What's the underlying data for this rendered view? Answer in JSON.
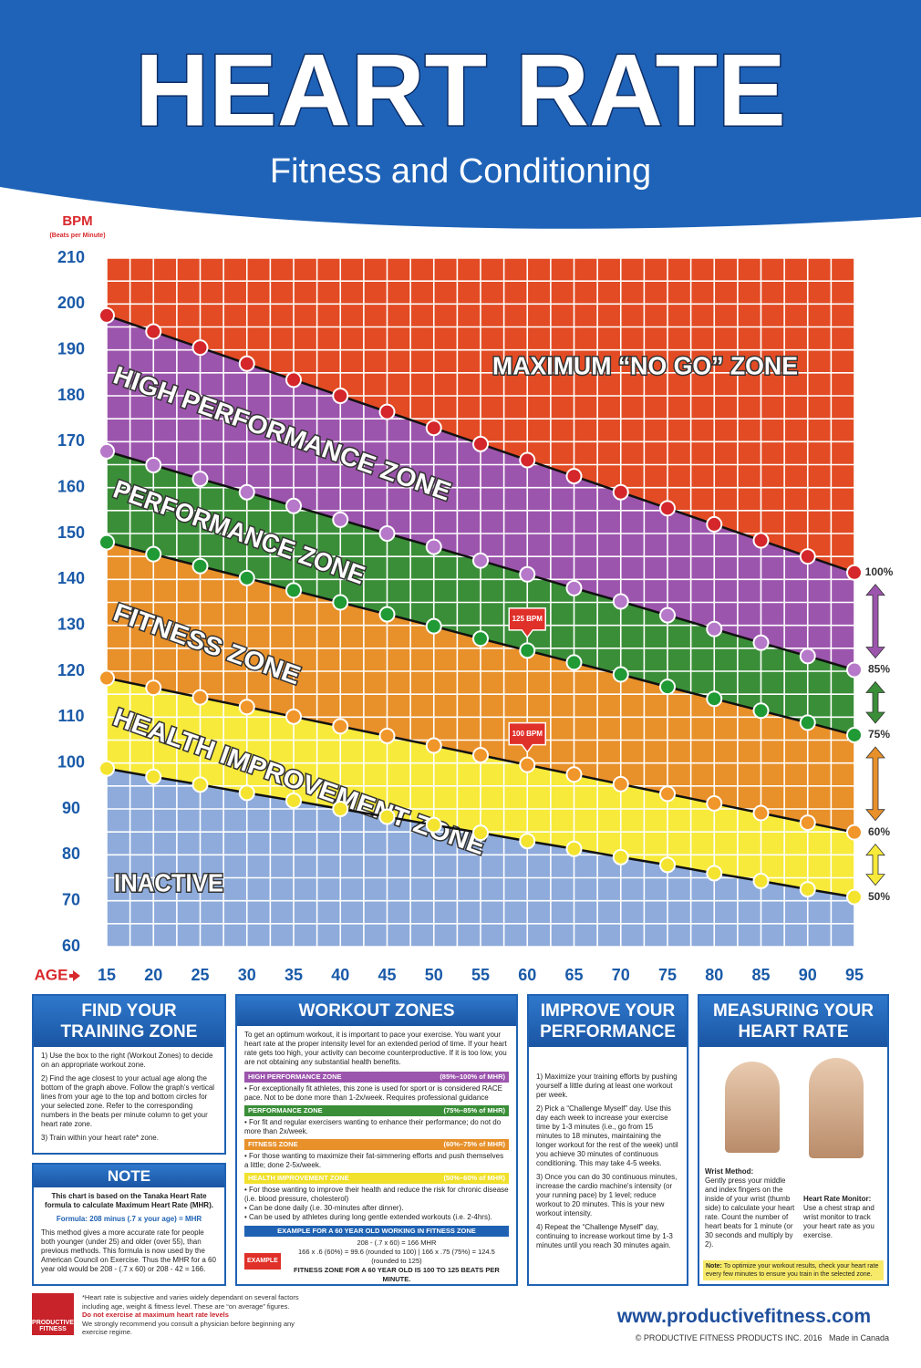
{
  "header": {
    "title": "HEART RATE",
    "subtitle": "Fitness and Conditioning"
  },
  "chart_data": {
    "type": "line",
    "y_label": "BPM",
    "y_sublabel": "(Beats per Minute)",
    "x_label": "AGE",
    "x": [
      15,
      20,
      25,
      30,
      35,
      40,
      45,
      50,
      55,
      60,
      65,
      70,
      75,
      80,
      85,
      90,
      95
    ],
    "xlim": [
      15,
      95
    ],
    "xticks": [
      15,
      20,
      25,
      30,
      35,
      40,
      45,
      50,
      55,
      60,
      65,
      70,
      75,
      80,
      85,
      90,
      95
    ],
    "ylim": [
      60,
      210
    ],
    "yticks": [
      60,
      70,
      80,
      90,
      100,
      110,
      120,
      130,
      140,
      150,
      160,
      170,
      180,
      190,
      200,
      210
    ],
    "grid": true,
    "series": [
      {
        "name": "100%",
        "color": "#d4262b",
        "values": [
          197.5,
          194,
          190.5,
          187,
          183.5,
          180,
          176.5,
          173,
          169.5,
          166,
          162.5,
          159,
          155.5,
          152,
          148.5,
          145,
          141.5
        ]
      },
      {
        "name": "85%",
        "color": "#b678c9",
        "values": [
          167.9,
          164.9,
          161.9,
          159.0,
          156.0,
          153.0,
          150.0,
          147.1,
          144.1,
          141.1,
          138.1,
          135.2,
          132.2,
          129.2,
          126.2,
          123.3,
          120.3
        ]
      },
      {
        "name": "75%",
        "color": "#1f9a34",
        "values": [
          148.1,
          145.5,
          142.9,
          140.3,
          137.6,
          135,
          132.4,
          129.8,
          127.1,
          124.5,
          121.9,
          119.3,
          116.6,
          114,
          111.4,
          108.8,
          106.1
        ]
      },
      {
        "name": "60%",
        "color": "#f0962a",
        "values": [
          118.5,
          116.4,
          114.3,
          112.2,
          110.1,
          108,
          105.9,
          103.8,
          101.7,
          99.6,
          97.5,
          95.4,
          93.3,
          91.2,
          89.1,
          87,
          84.9
        ]
      },
      {
        "name": "50%",
        "color": "#f4e430",
        "values": [
          98.8,
          97,
          95.3,
          93.5,
          91.8,
          90,
          88.3,
          86.5,
          84.8,
          83,
          81.3,
          79.5,
          77.8,
          76,
          74.3,
          72.5,
          70.8
        ]
      }
    ],
    "zones": [
      {
        "name": "MAXIMUM “NO GO” ZONE",
        "color": "#e24b24"
      },
      {
        "name": "HIGH PERFORMANCE ZONE",
        "color": "#9c55ad"
      },
      {
        "name": "PERFORMANCE ZONE",
        "color": "#3a8e38"
      },
      {
        "name": "FITNESS ZONE",
        "color": "#e8902a"
      },
      {
        "name": "HEALTH IMPROVEMENT ZONE",
        "color": "#f7ea3a"
      },
      {
        "name": "INACTIVE",
        "color": "#8eabdb"
      }
    ],
    "annotations": [
      {
        "text": "125 BPM",
        "x": 60,
        "y": 125
      },
      {
        "text": "100 BPM",
        "x": 60,
        "y": 100
      }
    ]
  },
  "panels": {
    "find_zone": {
      "title": "FIND YOUR TRAINING ZONE",
      "items": [
        "1) Use the box to the right (Workout Zones) to decide on an appropriate workout zone.",
        "2) Find the age closest to your actual age along the bottom of the graph above. Follow the graph's vertical lines from your age to the top and bottom circles for your selected zone. Refer to the corresponding numbers in the beats per minute column to get your heart rate zone.",
        "3) Train within your heart rate* zone."
      ]
    },
    "note": {
      "title": "NOTE",
      "intro": "This chart is based on the Tanaka Heart Rate formula to calculate Maximum Heart Rate (MHR).",
      "formula": "Formula: 208 minus (.7 x your age) = MHR",
      "body": "This method gives a more accurate rate for people both younger (under 25) and older (over 55), than previous methods. This formula is now used by the American Council on Exercise. Thus the MHR for a 60 year old would be 208 - (.7 x 60) or 208 - 42 = 166."
    },
    "workout_zones": {
      "title": "WORKOUT ZONES",
      "intro": "To get an optimum workout, it is important to pace your exercise. You want your heart rate at the proper intensity level for an extended period of time. If your heart rate gets too high, your activity can become counterproductive. If it is too low, you are not obtaining any substantial health benefits.",
      "zones": [
        {
          "name": "HIGH PERFORMANCE ZONE",
          "range": "(85%–100% of MHR)",
          "color": "#9c55ad",
          "items": [
            "• For exceptionally fit athletes, this zone is used for sport or is considered RACE pace. Not to be done more than 1-2x/week. Requires professional guidance"
          ]
        },
        {
          "name": "PERFORMANCE ZONE",
          "range": "(75%–85% of MHR)",
          "color": "#3a8e38",
          "items": [
            "• For fit and regular exercisers wanting to enhance their performance; do not do more than 2x/week."
          ]
        },
        {
          "name": "FITNESS ZONE",
          "range": "(60%–75% of MHR)",
          "color": "#e8902a",
          "items": [
            "• For those wanting to maximize their fat-simmering efforts and push themselves a little; done 2-5x/week."
          ]
        },
        {
          "name": "HEALTH IMPROVEMENT ZONE",
          "range": "(50%–60% of MHR)",
          "color": "#f1e12c",
          "items": [
            "• For those wanting to improve their health and reduce the risk for chronic disease (i.e. blood pressure, cholesterol)",
            "• Can be done daily (i.e. 30-minutes after dinner).",
            "• Can be used by athletes during long gentle extended workouts (i.e. 2-4hrs)."
          ]
        }
      ],
      "example": {
        "heading": "EXAMPLE FOR A 60 YEAR OLD WORKING IN FITNESS ZONE",
        "badge": "EXAMPLE",
        "lines": [
          "208 - (.7 x 60) = 166 MHR",
          "166 x .6 (60%) = 99.6 (rounded to 100) | 166 x .75 (75%) = 124.5 (rounded to 125)",
          "FITNESS ZONE FOR A 60 YEAR OLD IS 100 TO 125 BEATS PER MINUTE."
        ]
      }
    },
    "improve": {
      "title": "IMPROVE YOUR PERFORMANCE",
      "items": [
        "1) Maximize your training efforts by pushing yourself a little during at least one workout per week.",
        "2) Pick a “Challenge Myself” day. Use this day each week to increase your exercise time by 1-3 minutes (i.e., go from 15 minutes to 18 minutes, maintaining the longer workout for the rest of the week) until you achieve 30 minutes of continuous conditioning. This may take 4-5 weeks.",
        "3) Once you can do 30 continuous minutes, increase the cardio machine's intensity (or your running pace) by 1 level; reduce workout to 20 minutes. This is your new workout intensity.",
        "4) Repeat the “Challenge Myself” day, continuing to increase workout time by 1-3 minutes until you reach 30 minutes again."
      ]
    },
    "measuring": {
      "title": "MEASURING YOUR HEART RATE",
      "wrist_title": "Wrist Method:",
      "wrist_text": "Gently press your middle and index fingers on the inside of your wrist (thumb side) to calculate your heart rate. Count the number of heart beats for 1 minute (or 30 seconds and multiply by 2).",
      "monitor_title": "Heart Rate Monitor:",
      "monitor_text": "Use a chest strap and wrist monitor to track your heart rate as you exercise.",
      "note_label": "Note:",
      "note_text": "To optimize your workout results, check your heart rate every few minutes to ensure you train in the selected zone."
    }
  },
  "footer": {
    "logo": "PRODUCTIVE FITNESS",
    "disclaimer": "*Heart rate is subjective and varies widely dependant on several factors including age, weight & fitness level. These are “on average” figures.",
    "warning": "Do not exercise at maximum heart rate levels",
    "advice": "We strongly recommend you consult a physician before beginning any exercise regime.",
    "url": "www.productivefitness.com",
    "copyright": "© PRODUCTIVE FITNESS PRODUCTS INC. 2016",
    "made_in": "Made in Canada"
  }
}
